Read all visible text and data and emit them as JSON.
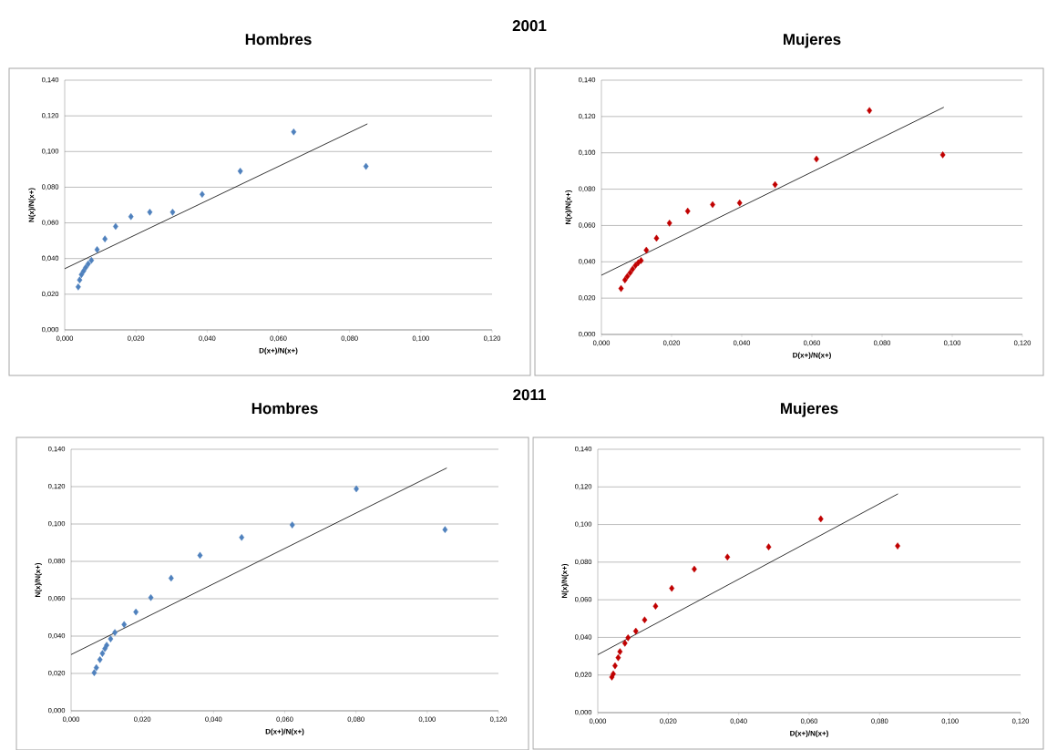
{
  "chart_data": [
    {
      "type": "scatter",
      "title": "Hombres",
      "annotations": [
        "2001"
      ],
      "xlabel": "D(x+)/N(x+)",
      "ylabel": "N(x)/N(x+)",
      "xlim": [
        0,
        0.12
      ],
      "ylim": [
        0,
        0.14
      ],
      "xticks": [
        {
          "value": 0,
          "label": "0,000"
        },
        {
          "value": 0.02,
          "label": "0,020"
        },
        {
          "value": 0.04,
          "label": "0,040"
        },
        {
          "value": 0.06,
          "label": "0,060"
        },
        {
          "value": 0.08,
          "label": "0,080"
        },
        {
          "value": 0.1,
          "label": "0,100"
        },
        {
          "value": 0.12,
          "label": "0,120"
        }
      ],
      "yticks": [
        {
          "value": 0,
          "label": "0,000"
        },
        {
          "value": 0.02,
          "label": "0,020"
        },
        {
          "value": 0.04,
          "label": "0,040"
        },
        {
          "value": 0.06,
          "label": "0,060"
        },
        {
          "value": 0.08,
          "label": "0,080"
        },
        {
          "value": 0.1,
          "label": "0,100"
        },
        {
          "value": 0.12,
          "label": "0,120"
        },
        {
          "value": 0.14,
          "label": "0,140"
        }
      ],
      "grid": "y",
      "marker": "diamond",
      "series": [
        {
          "color": "#4f81bd",
          "x": [
            0.0038,
            0.0042,
            0.0047,
            0.0053,
            0.0059,
            0.0066,
            0.0075,
            0.0091,
            0.0113,
            0.0143,
            0.0186,
            0.0239,
            0.0303,
            0.0386,
            0.0493,
            0.0643,
            0.0846
          ],
          "values": [
            0.0241,
            0.028,
            0.031,
            0.033,
            0.035,
            0.037,
            0.039,
            0.045,
            0.051,
            0.058,
            0.0635,
            0.066,
            0.066,
            0.076,
            0.089,
            0.111,
            0.0917
          ]
        },
        {
          "type": "line",
          "color": "#000000",
          "marker": "none",
          "x": [
            0,
            0.085
          ],
          "values": [
            0.0343,
            0.1155
          ]
        }
      ]
    },
    {
      "type": "scatter",
      "title": "Mujeres",
      "xlabel": "D(x+)/N(x+)",
      "ylabel": "N(x)/N(x+)",
      "xlim": [
        0,
        0.12
      ],
      "ylim": [
        0,
        0.14
      ],
      "xticks": [
        {
          "value": 0,
          "label": "0,000"
        },
        {
          "value": 0.02,
          "label": "0,020"
        },
        {
          "value": 0.04,
          "label": "0,040"
        },
        {
          "value": 0.06,
          "label": "0,060"
        },
        {
          "value": 0.08,
          "label": "0,080"
        },
        {
          "value": 0.1,
          "label": "0,100"
        },
        {
          "value": 0.12,
          "label": "0,120"
        }
      ],
      "yticks": [
        {
          "value": 0,
          "label": "0,000"
        },
        {
          "value": 0.02,
          "label": "0,020"
        },
        {
          "value": 0.04,
          "label": "0,040"
        },
        {
          "value": 0.06,
          "label": "0,060"
        },
        {
          "value": 0.08,
          "label": "0,080"
        },
        {
          "value": 0.1,
          "label": "0,100"
        },
        {
          "value": 0.12,
          "label": "0,120"
        },
        {
          "value": 0.14,
          "label": "0,140"
        }
      ],
      "grid": "y",
      "marker": "diamond",
      "series": [
        {
          "color": "#c00000",
          "x": [
            0.0056,
            0.0067,
            0.0074,
            0.0082,
            0.0089,
            0.0097,
            0.0105,
            0.0113,
            0.0128,
            0.0157,
            0.0194,
            0.0246,
            0.0317,
            0.0394,
            0.0495,
            0.0613,
            0.0764,
            0.0973
          ],
          "values": [
            0.0253,
            0.03,
            0.032,
            0.034,
            0.036,
            0.038,
            0.0395,
            0.0407,
            0.0464,
            0.053,
            0.0613,
            0.0679,
            0.0715,
            0.0724,
            0.0825,
            0.0966,
            0.1233,
            0.0989
          ]
        },
        {
          "type": "line",
          "color": "#000000",
          "marker": "none",
          "x": [
            0,
            0.0976
          ],
          "values": [
            0.0326,
            0.1251
          ]
        }
      ]
    },
    {
      "type": "scatter",
      "title": "Hombres",
      "annotations": [
        "2011"
      ],
      "xlabel": "D(x+)/N(x+)",
      "ylabel": "N(x)/N(x+)",
      "xlim": [
        0,
        0.12
      ],
      "ylim": [
        0,
        0.14
      ],
      "xticks": [
        {
          "value": 0,
          "label": "0,000"
        },
        {
          "value": 0.02,
          "label": "0,020"
        },
        {
          "value": 0.04,
          "label": "0,040"
        },
        {
          "value": 0.06,
          "label": "0,060"
        },
        {
          "value": 0.08,
          "label": "0,080"
        },
        {
          "value": 0.1,
          "label": "0,100"
        },
        {
          "value": 0.12,
          "label": "0,120"
        }
      ],
      "yticks": [
        {
          "value": 0,
          "label": "0,000"
        },
        {
          "value": 0.02,
          "label": "0,020"
        },
        {
          "value": 0.04,
          "label": "0,040"
        },
        {
          "value": 0.06,
          "label": "0,060"
        },
        {
          "value": 0.08,
          "label": "0,080"
        },
        {
          "value": 0.1,
          "label": "0,100"
        },
        {
          "value": 0.12,
          "label": "0,120"
        },
        {
          "value": 0.14,
          "label": "0,140"
        }
      ],
      "grid": "y",
      "marker": "diamond",
      "series": [
        {
          "color": "#4f81bd",
          "x": [
            0.0065,
            0.0071,
            0.0081,
            0.0088,
            0.0095,
            0.01,
            0.0111,
            0.0123,
            0.0149,
            0.0182,
            0.0224,
            0.0281,
            0.0362,
            0.0479,
            0.0621,
            0.0801,
            0.105
          ],
          "values": [
            0.0204,
            0.0231,
            0.0274,
            0.0307,
            0.0333,
            0.0351,
            0.0385,
            0.0419,
            0.0462,
            0.0529,
            0.0606,
            0.071,
            0.0832,
            0.0928,
            0.0995,
            0.1188,
            0.097
          ]
        },
        {
          "type": "line",
          "color": "#000000",
          "marker": "none",
          "x": [
            0,
            0.1055
          ],
          "values": [
            0.0301,
            0.13
          ]
        }
      ]
    },
    {
      "type": "scatter",
      "title": "Mujeres",
      "xlabel": "D(x+)/N(x+)",
      "ylabel": "N(x)/N(x+)",
      "xlim": [
        0,
        0.12
      ],
      "ylim": [
        0,
        0.14
      ],
      "xticks": [
        {
          "value": 0,
          "label": "0,000"
        },
        {
          "value": 0.02,
          "label": "0,020"
        },
        {
          "value": 0.04,
          "label": "0,040"
        },
        {
          "value": 0.06,
          "label": "0,060"
        },
        {
          "value": 0.08,
          "label": "0,080"
        },
        {
          "value": 0.1,
          "label": "0,100"
        },
        {
          "value": 0.12,
          "label": "0,120"
        }
      ],
      "yticks": [
        {
          "value": 0,
          "label": "0,000"
        },
        {
          "value": 0.02,
          "label": "0,020"
        },
        {
          "value": 0.04,
          "label": "0,040"
        },
        {
          "value": 0.06,
          "label": "0,060"
        },
        {
          "value": 0.08,
          "label": "0,080"
        },
        {
          "value": 0.1,
          "label": "0,100"
        },
        {
          "value": 0.12,
          "label": "0,120"
        },
        {
          "value": 0.14,
          "label": "0,140"
        }
      ],
      "grid": "y",
      "marker": "diamond",
      "series": [
        {
          "color": "#c00000",
          "x": [
            0.004,
            0.0044,
            0.0049,
            0.0058,
            0.0063,
            0.0077,
            0.0086,
            0.0108,
            0.0133,
            0.0164,
            0.021,
            0.0274,
            0.0368,
            0.0485,
            0.0633,
            0.0851
          ],
          "values": [
            0.0189,
            0.0206,
            0.0249,
            0.0292,
            0.0324,
            0.0369,
            0.0398,
            0.0433,
            0.0493,
            0.0566,
            0.0661,
            0.0763,
            0.0827,
            0.0881,
            0.103,
            0.0886
          ]
        },
        {
          "type": "line",
          "color": "#000000",
          "marker": "none",
          "x": [
            0,
            0.0852
          ],
          "values": [
            0.0308,
            0.1163
          ]
        }
      ]
    }
  ]
}
